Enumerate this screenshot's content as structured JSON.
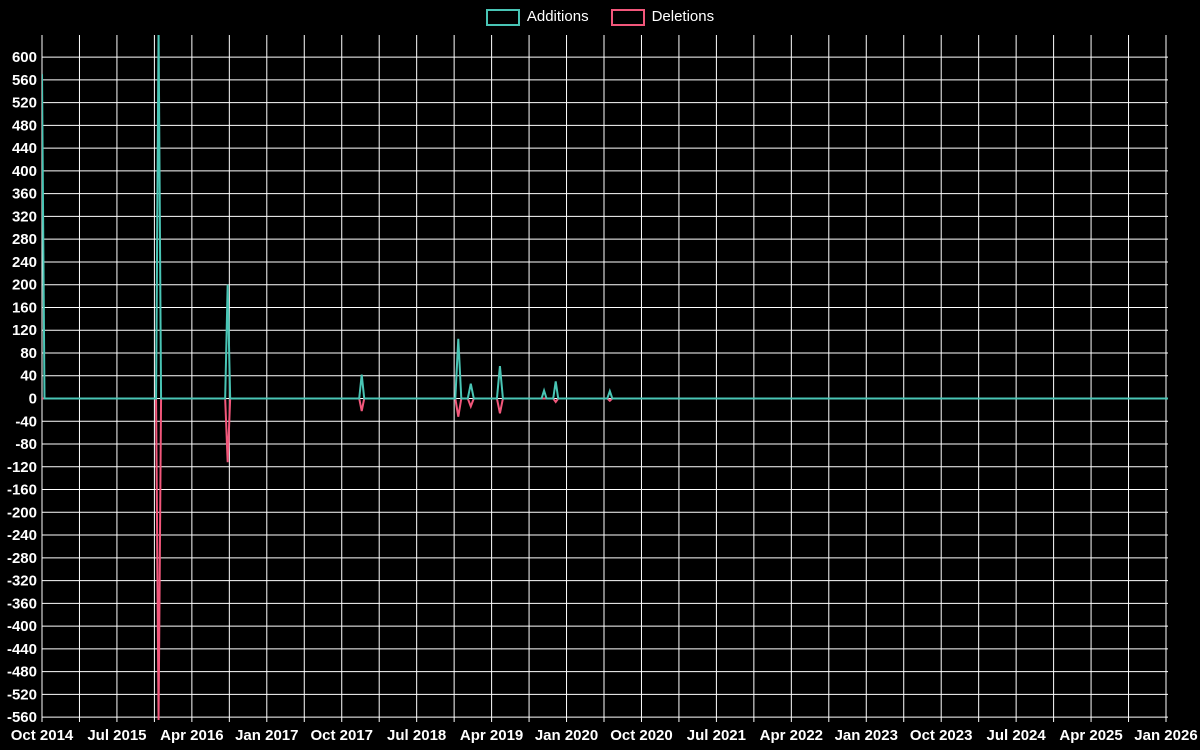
{
  "chart_data": {
    "type": "line",
    "title": "",
    "description": "Code frequency style chart of weekly additions and deletions, spikes on a zero baseline",
    "background": "#000000",
    "grid_color": "#ffffff",
    "text_color": "#ffffff",
    "grid": true,
    "legend_position": "top-center",
    "legend": [
      {
        "label": "Additions",
        "color": "#49c5b5"
      },
      {
        "label": "Deletions",
        "color": "#f2577b"
      }
    ],
    "x_tick_labels": [
      "Oct 2014",
      "Jul 2015",
      "Apr 2016",
      "Jan 2017",
      "Oct 2017",
      "Jul 2018",
      "Apr 2019",
      "Jan 2020",
      "Oct 2020",
      "Jul 2021",
      "Apr 2022",
      "Jan 2023",
      "Oct 2023",
      "Jul 2024",
      "Apr 2025",
      "Jan 2026"
    ],
    "x_tick_months": [
      0,
      9,
      18,
      27,
      36,
      45,
      54,
      63,
      72,
      81,
      90,
      99,
      108,
      117,
      126,
      135
    ],
    "x_grid_step_months": 4.5,
    "x_range_months": [
      0,
      135
    ],
    "y_ticks": [
      600,
      560,
      520,
      480,
      440,
      400,
      360,
      320,
      280,
      240,
      200,
      160,
      120,
      80,
      40,
      0,
      -40,
      -80,
      -120,
      -160,
      -200,
      -240,
      -280,
      -320,
      -360,
      -400,
      -440,
      -480,
      -520,
      -560
    ],
    "y_range": [
      -568,
      640
    ],
    "zero_line_value": 0,
    "series": [
      {
        "name": "Deletions",
        "color": "#f2577b",
        "points": [
          {
            "m": 14,
            "v": -565,
            "w": 2.5
          },
          {
            "m": 22.3,
            "v": -112,
            "w": 2.5
          },
          {
            "m": 38.4,
            "v": -22,
            "w": 2.5
          },
          {
            "m": 50,
            "v": -32,
            "w": 3
          },
          {
            "m": 51.5,
            "v": -14,
            "w": 3
          },
          {
            "m": 55,
            "v": -26,
            "w": 3
          },
          {
            "m": 61.7,
            "v": -6,
            "w": 2.5
          },
          {
            "m": 68.2,
            "v": -4,
            "w": 2.5
          }
        ]
      },
      {
        "name": "Additions",
        "color": "#49c5b5",
        "points": [
          {
            "m": 0,
            "v": 570,
            "w": 2.5
          },
          {
            "m": 14,
            "v": 650,
            "w": 2.5
          },
          {
            "m": 22.3,
            "v": 200,
            "w": 2.5
          },
          {
            "m": 38.4,
            "v": 42,
            "w": 2.5
          },
          {
            "m": 50,
            "v": 105,
            "w": 3
          },
          {
            "m": 51.5,
            "v": 26,
            "w": 3
          },
          {
            "m": 55,
            "v": 57,
            "w": 3
          },
          {
            "m": 60.3,
            "v": 14,
            "w": 2.5
          },
          {
            "m": 61.7,
            "v": 30,
            "w": 2.5
          },
          {
            "m": 68.2,
            "v": 13,
            "w": 2.5
          }
        ]
      }
    ]
  }
}
